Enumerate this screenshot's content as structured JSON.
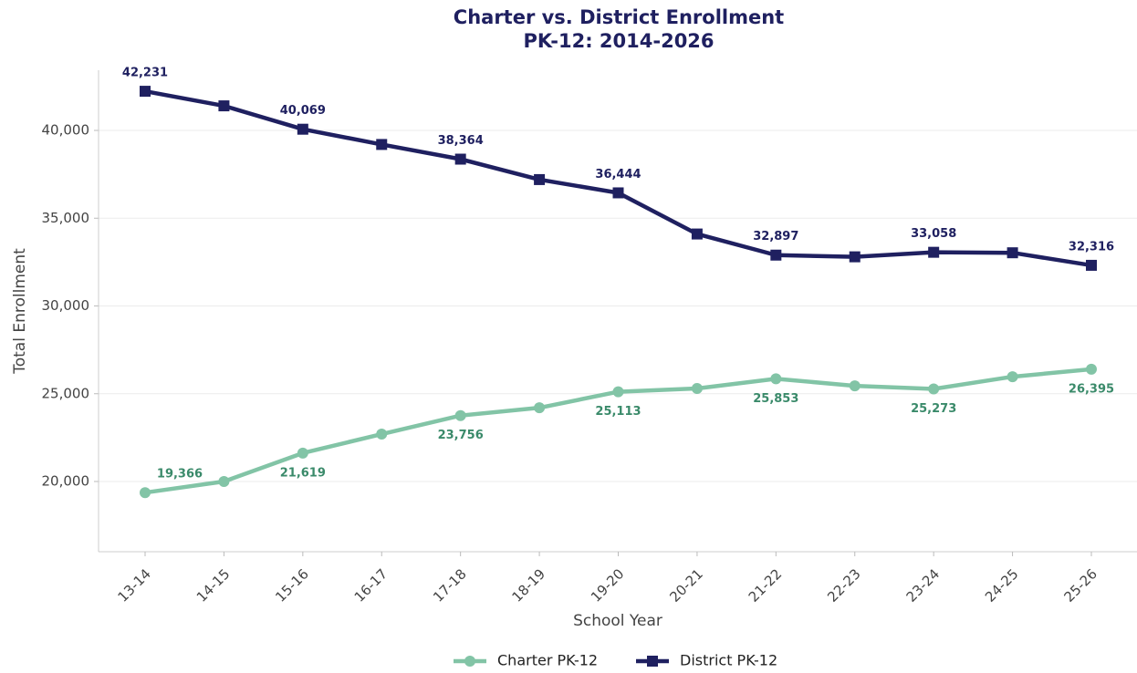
{
  "chart_data": {
    "type": "line",
    "title": [
      "Charter vs. District Enrollment",
      "PK-12: 2014-2026"
    ],
    "xlabel": "School Year",
    "ylabel": "Total Enrollment",
    "categories": [
      "13-14",
      "14-15",
      "15-16",
      "16-17",
      "17-18",
      "18-19",
      "19-20",
      "20-21",
      "21-22",
      "22-23",
      "23-24",
      "24-25",
      "25-26"
    ],
    "series": [
      {
        "name": "Charter PK-12",
        "color": "#82c4a6",
        "label_color": "#3a8a6a",
        "marker": "circle",
        "values": [
          19366,
          20000,
          21619,
          22700,
          23756,
          24200,
          25113,
          25300,
          25853,
          25450,
          25273,
          25970,
          26395
        ],
        "value_labels": [
          "19,366",
          null,
          "21,619",
          null,
          "23,756",
          null,
          "25,113",
          null,
          "25,853",
          null,
          "25,273",
          null,
          "26,395"
        ]
      },
      {
        "name": "District PK-12",
        "color": "#1f2060",
        "label_color": "#1f2060",
        "marker": "square",
        "values": [
          42231,
          41400,
          40069,
          39200,
          38364,
          37200,
          36444,
          34100,
          32897,
          32800,
          33058,
          33030,
          32316
        ],
        "value_labels": [
          "42,231",
          null,
          "40,069",
          null,
          "38,364",
          null,
          "36,444",
          null,
          "32,897",
          null,
          "33,058",
          null,
          "32,316"
        ]
      }
    ],
    "ylim": [
      16000,
      43430
    ],
    "yticks": [
      {
        "value": 20000,
        "label": "20,000"
      },
      {
        "value": 25000,
        "label": "25,000"
      },
      {
        "value": 30000,
        "label": "30,000"
      },
      {
        "value": 35000,
        "label": "35,000"
      },
      {
        "value": 40000,
        "label": "40,000"
      }
    ],
    "grid": true,
    "legend": "bottom"
  }
}
